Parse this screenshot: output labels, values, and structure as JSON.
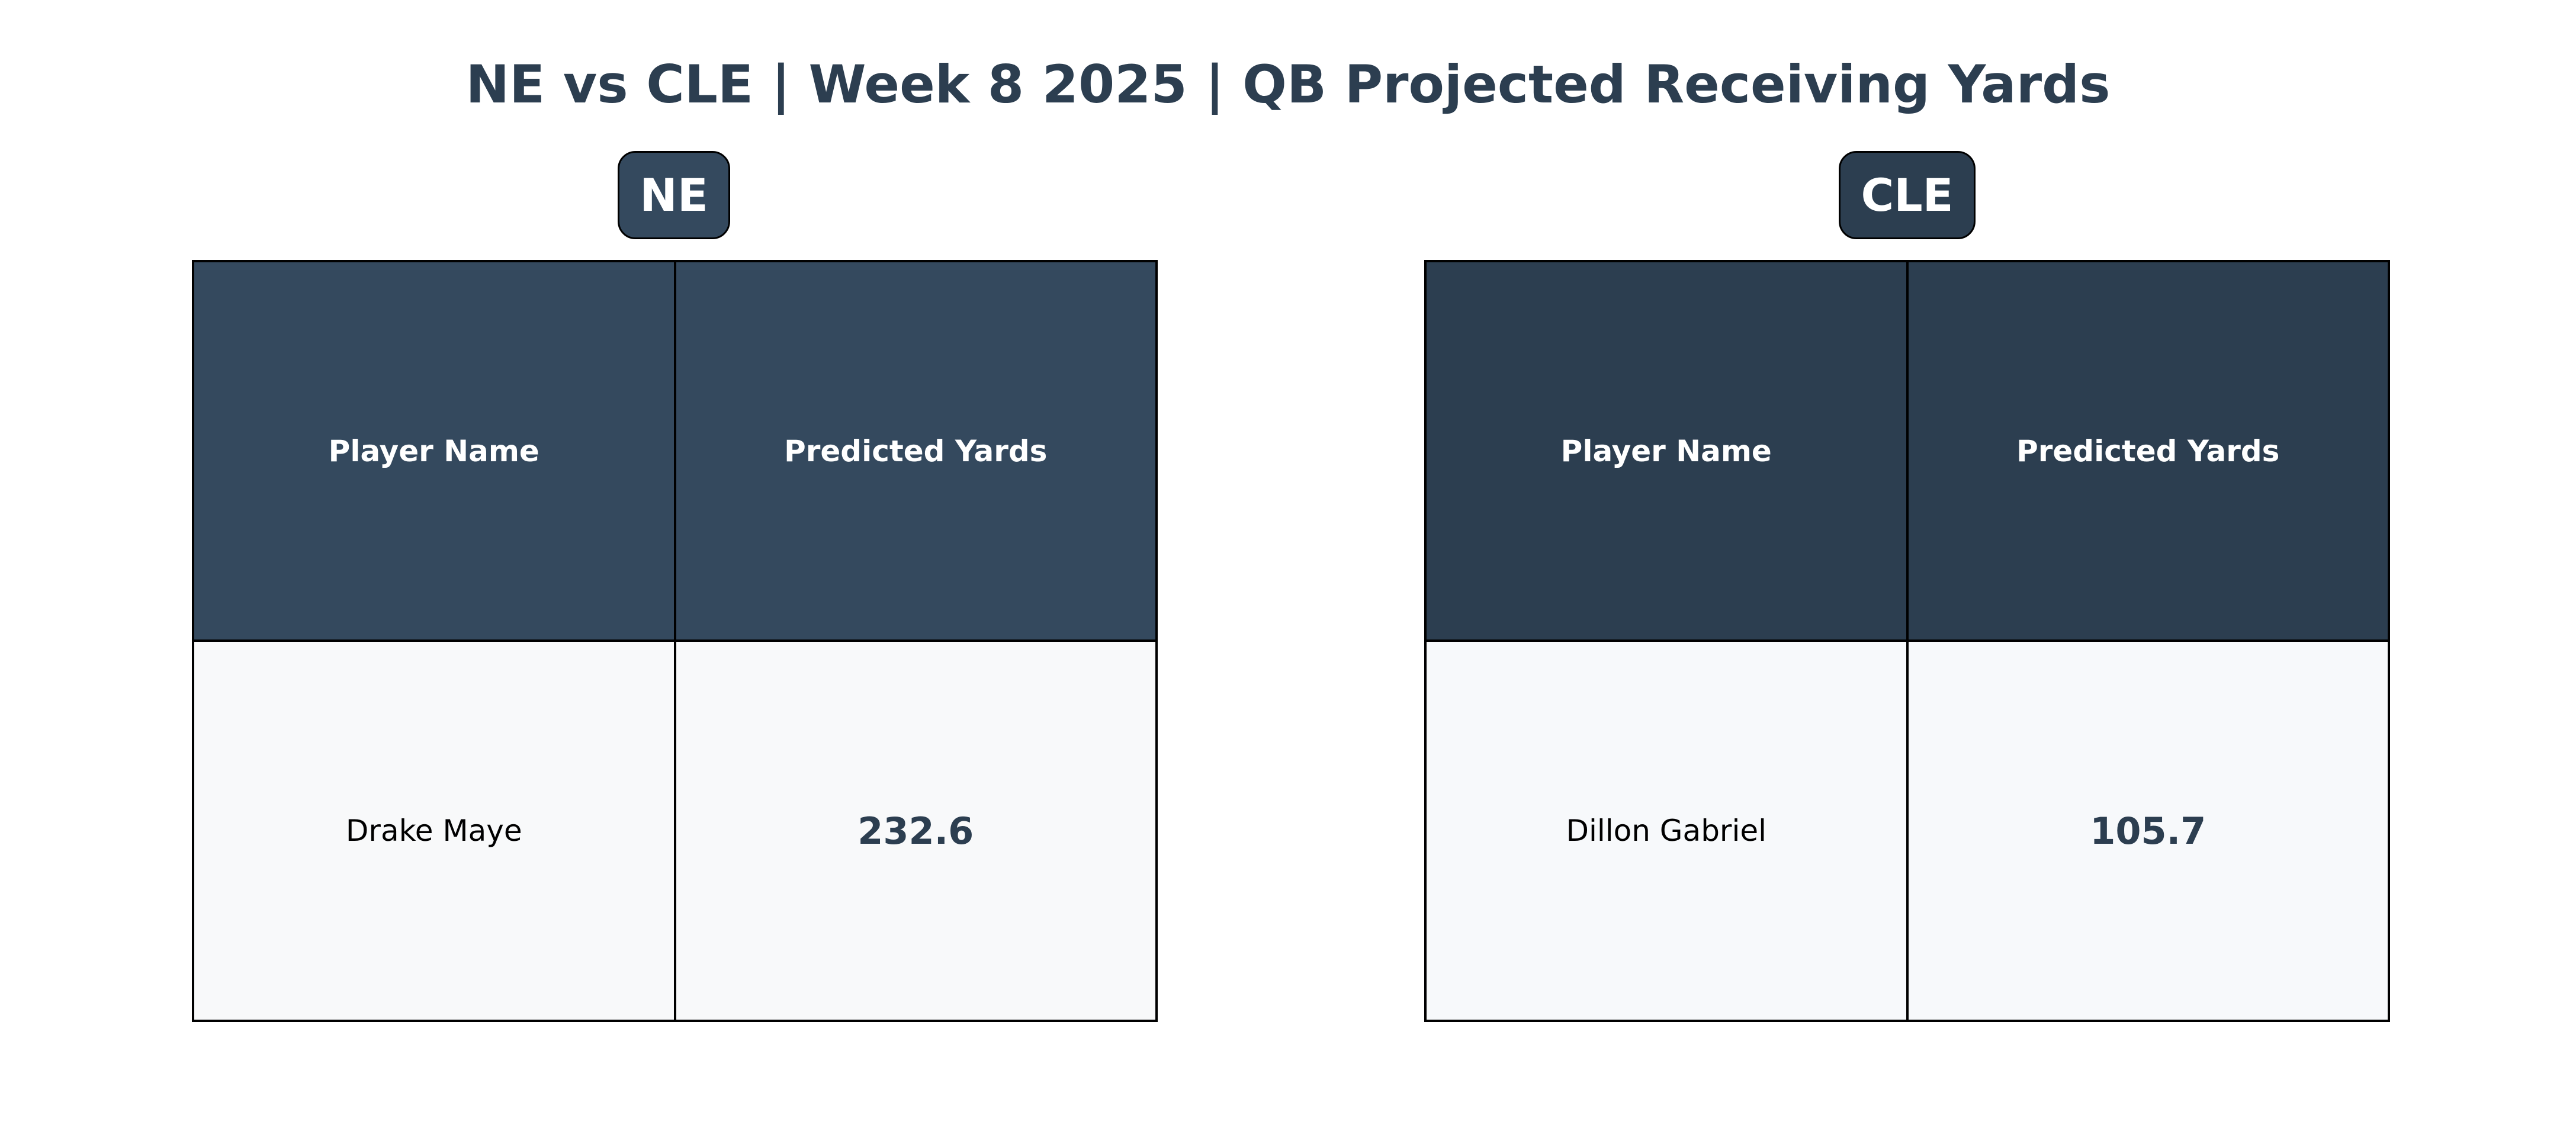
{
  "title": "NE vs CLE | Week 8 2025 | QB Projected Receiving Yards",
  "colors": {
    "title": "#2c3e50",
    "ne_header": "#34495e",
    "cle_header": "#2c3e50",
    "cell_background": "#f8f9fa",
    "value_text": "#2c3e50"
  },
  "chart_data": [
    {
      "type": "table",
      "team": "NE",
      "columns": [
        "Player Name",
        "Predicted Yards"
      ],
      "rows": [
        {
          "player": "Drake Maye",
          "yards": "232.6"
        }
      ]
    },
    {
      "type": "table",
      "team": "CLE",
      "columns": [
        "Player Name",
        "Predicted Yards"
      ],
      "rows": [
        {
          "player": "Dillon Gabriel",
          "yards": "105.7"
        }
      ]
    }
  ]
}
